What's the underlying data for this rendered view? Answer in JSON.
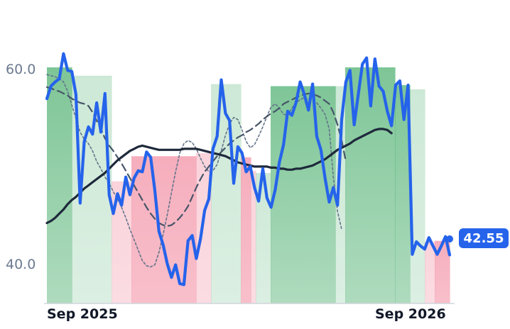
{
  "chart_data": {
    "type": "line",
    "title": "",
    "xlabel": "",
    "ylabel": "",
    "x_tick_labels": [
      "Sep 2025",
      "Sep 2026"
    ],
    "y_tick_labels": [
      "60.0",
      "40.0"
    ],
    "ylim": [
      37.9,
      66.6
    ],
    "last_value_label": "42.55",
    "colors": {
      "price": "#2563eb",
      "long_ma": "#1e293b",
      "mid_ma": "#475569",
      "short_ma": "#64748b",
      "up_band": "#4caf6e",
      "down_band": "#f28ba0",
      "badge": "#2563eb"
    },
    "bands": [
      {
        "start": 0,
        "end": 5,
        "state": "up",
        "strength": "strong"
      },
      {
        "start": 5,
        "end": 13,
        "state": "up",
        "strength": "weak"
      },
      {
        "start": 13,
        "end": 17,
        "state": "down",
        "strength": "weak"
      },
      {
        "start": 17,
        "end": 30,
        "state": "down",
        "strength": "strong"
      },
      {
        "start": 30,
        "end": 33,
        "state": "down",
        "strength": "weak"
      },
      {
        "start": 33,
        "end": 39,
        "state": "up",
        "strength": "weak"
      },
      {
        "start": 39,
        "end": 41,
        "state": "down",
        "strength": "strong"
      },
      {
        "start": 41,
        "end": 42,
        "state": "down",
        "strength": "weak"
      },
      {
        "start": 42,
        "end": 45,
        "state": "up",
        "strength": "weak"
      },
      {
        "start": 45,
        "end": 58,
        "state": "up",
        "strength": "strong"
      },
      {
        "start": 58,
        "end": 60,
        "state": "up",
        "strength": "weak"
      },
      {
        "start": 60,
        "end": 70,
        "state": "up",
        "strength": "strong"
      },
      {
        "start": 70,
        "end": 73,
        "state": "up",
        "strength": "strong"
      },
      {
        "start": 73,
        "end": 76,
        "state": "up",
        "strength": "weak"
      },
      {
        "start": 76,
        "end": 78,
        "state": "down",
        "strength": "weak"
      },
      {
        "start": 78,
        "end": 81,
        "state": "down",
        "strength": "strong"
      }
    ],
    "series": [
      {
        "key": "price",
        "values": [
          57.5,
          58.7,
          59.1,
          59.4,
          61.8,
          60.2,
          60.1,
          57.9,
          47.5,
          53.4,
          54.8,
          54.1,
          57.1,
          54.3,
          58.0,
          48.3,
          46.5,
          48.4,
          47.3,
          50.0,
          48.3,
          49.9,
          50.6,
          50.5,
          52.4,
          51.9,
          48.7,
          44.8,
          43.5,
          41.7,
          40.4,
          41.6,
          39.8,
          39.7,
          43.9,
          44.4,
          42.2,
          44.1,
          46.8,
          47.9,
          52.7,
          53.9,
          59.3,
          56.1,
          55.4,
          49.4,
          52.9,
          52.3,
          50.5,
          51.0,
          49.0,
          47.7,
          50.8,
          48.0,
          47.1,
          48.8,
          51.4,
          53.1,
          56.3,
          55.9,
          57.1,
          59.1,
          57.9,
          56.4,
          58.9,
          53.9,
          52.6,
          49.9,
          47.6,
          49.0,
          47.3,
          55.5,
          59.1,
          60.2,
          55.0,
          57.9,
          60.8,
          61.4,
          56.8,
          61.3,
          58.7,
          58.2,
          56.3,
          54.9,
          58.8,
          59.2,
          55.5,
          58.8,
          42.6,
          43.8,
          43.4,
          43.1,
          44.2,
          43.4,
          42.6,
          43.4,
          44.3,
          42.55
        ]
      },
      {
        "key": "long_ma",
        "values": [
          45.6,
          45.8,
          46.1,
          46.5,
          46.9,
          47.4,
          47.8,
          48.1,
          48.5,
          48.9,
          49.2,
          49.5,
          49.8,
          50.1,
          50.4,
          50.8,
          51.2,
          51.6,
          51.9,
          52.2,
          52.5,
          52.7,
          52.9,
          53.0,
          52.9,
          52.8,
          52.7,
          52.6,
          52.6,
          52.6,
          52.6,
          52.6,
          52.6,
          52.7,
          52.7,
          52.7,
          52.7,
          52.6,
          52.5,
          52.4,
          52.3,
          52.2,
          52.1,
          52.0,
          51.8,
          51.6,
          51.4,
          51.3,
          51.2,
          51.1,
          51.0,
          51.0,
          51.0,
          51.0,
          50.9,
          50.9,
          50.8,
          50.8,
          50.7,
          50.7,
          50.8,
          50.8,
          50.9,
          51.0,
          51.1,
          51.3,
          51.5,
          51.7,
          52.0,
          52.3,
          52.6,
          52.8,
          53.0,
          53.2,
          53.5,
          53.7,
          53.9,
          54.1,
          54.3,
          54.5,
          54.6,
          54.6,
          54.5,
          54.2
        ]
      },
      {
        "key": "mid_ma",
        "values": [
          58.6,
          58.5,
          58.3,
          58.2,
          58.0,
          57.8,
          57.5,
          57.3,
          57.1,
          57.0,
          56.8,
          56.2,
          55.4,
          54.6,
          53.7,
          53.0,
          52.5,
          51.9,
          51.3,
          50.6,
          49.9,
          49.2,
          48.5,
          47.8,
          47.1,
          46.5,
          46.0,
          45.6,
          45.4,
          45.3,
          45.4,
          45.7,
          46.1,
          46.6,
          47.2,
          48.1,
          49.0,
          49.8,
          50.5,
          51.0,
          51.5,
          52.0,
          52.4,
          52.8,
          53.2,
          53.5,
          53.8,
          54.0,
          54.3,
          54.5,
          54.8,
          55.1,
          55.5,
          55.8,
          56.1,
          56.3,
          56.6,
          57.0,
          57.2,
          57.4,
          57.6,
          57.8,
          57.9,
          58.0,
          57.9,
          57.8,
          57.6,
          57.3,
          57.0,
          56.2,
          55.0,
          53.5,
          51.5
        ]
      },
      {
        "key": "short_ma",
        "values": [
          59.8,
          59.7,
          59.6,
          59.4,
          59.1,
          58.2,
          56.9,
          55.6,
          54.3,
          53.6,
          53.2,
          52.5,
          51.5,
          50.8,
          50.0,
          49.4,
          48.6,
          47.9,
          47.1,
          46.1,
          45.0,
          44.0,
          43.0,
          42.0,
          41.5,
          41.4,
          41.6,
          42.8,
          44.5,
          46.4,
          48.5,
          50.5,
          52.3,
          53.2,
          53.5,
          53.3,
          52.7,
          51.8,
          51.0,
          50.5,
          50.6,
          51.2,
          52.5,
          54.0,
          55.1,
          55.7,
          55.5,
          54.5,
          53.4,
          52.8,
          53.1,
          53.9,
          54.8,
          55.8,
          56.7,
          57.0,
          56.6,
          56.0,
          55.9,
          56.6,
          57.1,
          57.4,
          57.6,
          57.4,
          57.3,
          57.1,
          56.6,
          56.0,
          54.6,
          50.0,
          46.7,
          45.0
        ]
      }
    ]
  }
}
